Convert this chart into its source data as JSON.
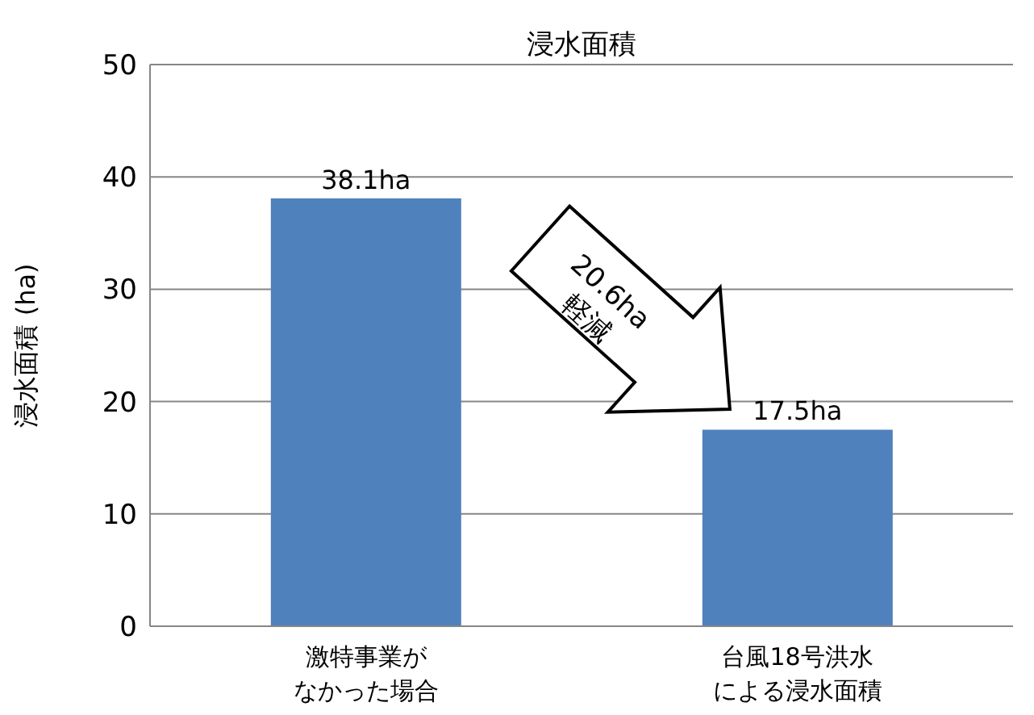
{
  "chart_data": {
    "type": "bar",
    "title": "浸水面積",
    "ylabel": "浸水面積 (ha)",
    "categories": [
      "激特事業がなかった場合",
      "台風18号洪水による浸水面積"
    ],
    "values": [
      38.1,
      17.5
    ],
    "color": "#4f81bd",
    "value_labels": [
      "38.1ha",
      "17.5ha"
    ],
    "ylim": [
      0,
      50
    ],
    "yticks": [
      0,
      10,
      20,
      30,
      40,
      50
    ],
    "grid": "y",
    "annotations": [
      "20.6ha",
      "軽減"
    ]
  }
}
